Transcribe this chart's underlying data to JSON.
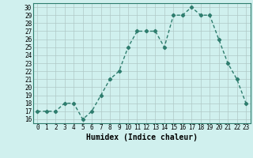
{
  "x": [
    0,
    1,
    2,
    3,
    4,
    5,
    6,
    7,
    8,
    9,
    10,
    11,
    12,
    13,
    14,
    15,
    16,
    17,
    18,
    19,
    20,
    21,
    22,
    23
  ],
  "y": [
    17,
    17,
    17,
    18,
    18,
    16,
    17,
    19,
    21,
    22,
    25,
    27,
    27,
    27,
    25,
    29,
    29,
    30,
    29,
    29,
    26,
    23,
    21,
    18
  ],
  "line_color": "#2e7d6e",
  "marker": "D",
  "marker_size": 2.2,
  "bg_color": "#d0f0ee",
  "grid_color": "#b0c8c6",
  "xlabel": "Humidex (Indice chaleur)",
  "xlim": [
    -0.5,
    23.5
  ],
  "ylim": [
    15.5,
    30.5
  ],
  "yticks": [
    16,
    17,
    18,
    19,
    20,
    21,
    22,
    23,
    24,
    25,
    26,
    27,
    28,
    29,
    30
  ],
  "xticks": [
    0,
    1,
    2,
    3,
    4,
    5,
    6,
    7,
    8,
    9,
    10,
    11,
    12,
    13,
    14,
    15,
    16,
    17,
    18,
    19,
    20,
    21,
    22,
    23
  ],
  "tick_fontsize": 5.5,
  "xlabel_fontsize": 7,
  "line_width": 1.0
}
